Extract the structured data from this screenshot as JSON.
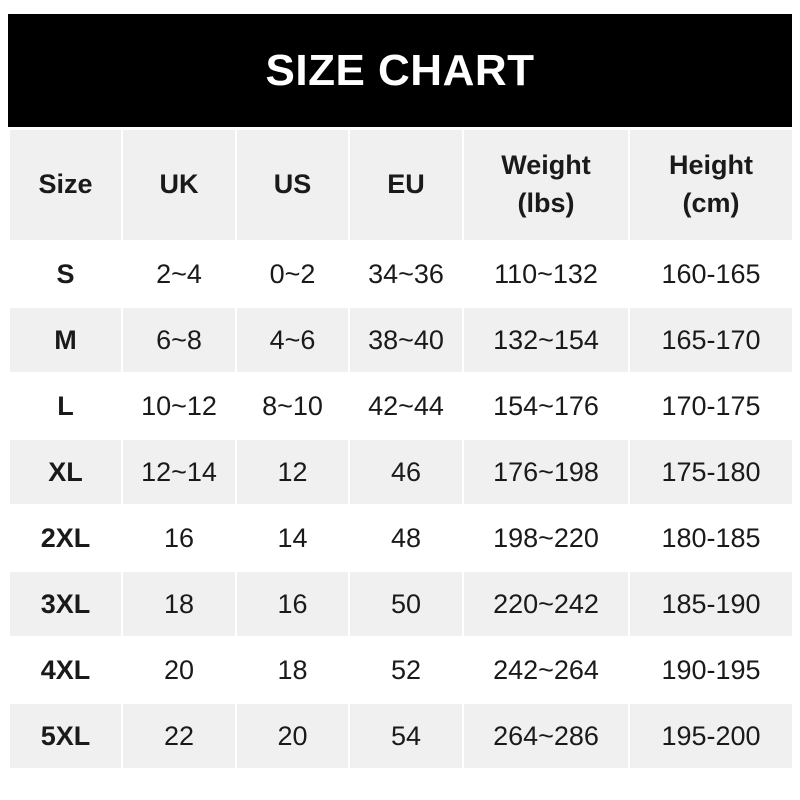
{
  "title": "SIZE CHART",
  "headers": [
    "Size",
    "UK",
    "US",
    "EU",
    "Weight\n(lbs)",
    "Height\n(cm)"
  ],
  "header_lines": [
    [
      "Size"
    ],
    [
      "UK"
    ],
    [
      "US"
    ],
    [
      "EU"
    ],
    [
      "Weight",
      "(lbs)"
    ],
    [
      "Height",
      "(cm)"
    ]
  ],
  "rows": [
    [
      "S",
      "2~4",
      "0~2",
      "34~36",
      "110~132",
      "160-165"
    ],
    [
      "M",
      "6~8",
      "4~6",
      "38~40",
      "132~154",
      "165-170"
    ],
    [
      "L",
      "10~12",
      "8~10",
      "42~44",
      "154~176",
      "170-175"
    ],
    [
      "XL",
      "12~14",
      "12",
      "46",
      "176~198",
      "175-180"
    ],
    [
      "2XL",
      "16",
      "14",
      "48",
      "198~220",
      "180-185"
    ],
    [
      "3XL",
      "18",
      "16",
      "50",
      "220~242",
      "185-190"
    ],
    [
      "4XL",
      "20",
      "18",
      "52",
      "242~264",
      "190-195"
    ],
    [
      "5XL",
      "22",
      "20",
      "54",
      "264~286",
      "195-200"
    ]
  ],
  "colors": {
    "title_bg": "#000000",
    "title_text": "#ffffff",
    "stripe": "#f0f0f0"
  }
}
